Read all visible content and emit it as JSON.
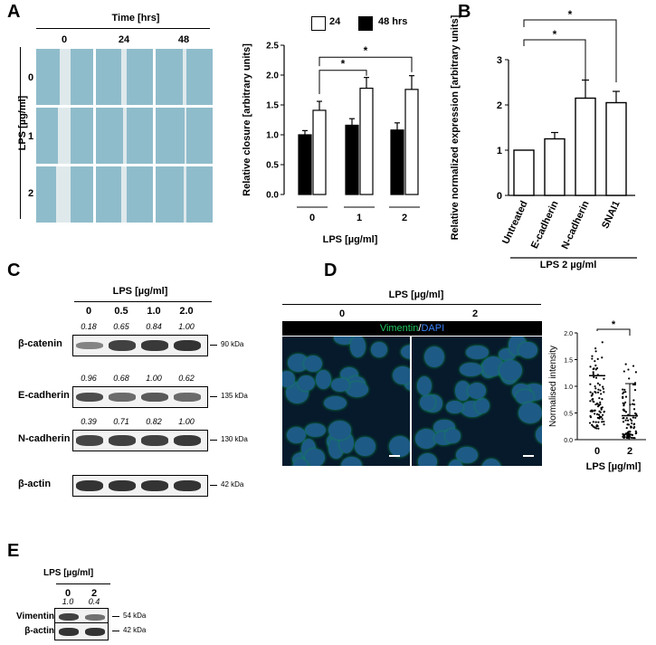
{
  "panelA": {
    "label": "A",
    "time_header": "Time [hrs]",
    "time_cols": [
      "0",
      "24",
      "48"
    ],
    "lps_label": "LPS [µg/ml]",
    "lps_rows": [
      "0",
      "1",
      "2"
    ],
    "legend": [
      "24",
      "48 hrs"
    ]
  },
  "panelB": {
    "label": "B",
    "group_label": "LPS 2 µg/ml"
  },
  "panelC": {
    "label": "C",
    "header": "LPS [µg/ml]",
    "cols": [
      "0",
      "0.5",
      "1.0",
      "2.0"
    ],
    "rows": [
      {
        "name": "β-catenin",
        "kda": "90 kDa",
        "quant": [
          "0.18",
          "0.65",
          "0.84",
          "1.00"
        ]
      },
      {
        "name": "E-cadherin",
        "kda": "135 kDa",
        "quant": [
          "0.96",
          "0.68",
          "1.00",
          "0.62"
        ]
      },
      {
        "name": "N-cadherin",
        "kda": "130 kDa",
        "quant": [
          "0.39",
          "0.71",
          "0.82",
          "1.00"
        ]
      },
      {
        "name": "β-actin",
        "kda": "42 kDa",
        "quant": []
      }
    ]
  },
  "panelD": {
    "label": "D",
    "header": "LPS [µg/ml]",
    "cols": [
      "0",
      "2"
    ],
    "stain_green": "Vimentin",
    "stain_sep": "/",
    "stain_blue": "DAPI",
    "colors": {
      "green": "#22c55e",
      "blue": "#3b82f6"
    }
  },
  "panelE": {
    "label": "E",
    "header": "LPS [µg/ml]",
    "cols": [
      "0",
      "2"
    ],
    "rows": [
      {
        "name": "Vimentin",
        "kda": "54 kDa",
        "quant": [
          "1.0",
          "0.4"
        ]
      },
      {
        "name": "β-actin",
        "kda": "42 kDa",
        "quant": []
      }
    ]
  },
  "chart_data": [
    {
      "type": "bar",
      "id": "A-closure",
      "categories": [
        "0",
        "1",
        "2"
      ],
      "series": [
        {
          "name": "48 hrs",
          "values": [
            1.0,
            1.16,
            1.08
          ],
          "errors": [
            0.07,
            0.11,
            0.12
          ],
          "color": "#000000"
        },
        {
          "name": "24",
          "values": [
            1.41,
            1.78,
            1.76
          ],
          "errors": [
            0.15,
            0.18,
            0.23
          ],
          "color": "#ffffff"
        }
      ],
      "xlabel": "LPS  [µg/ml]",
      "ylabel": "Relative closure [arbitrary units]",
      "ylim": [
        0,
        2.5
      ],
      "yticks": [
        "0.0",
        "0.5",
        "1.0",
        "1.5",
        "2.0",
        "2.5"
      ],
      "legend": "top",
      "significance": [
        "*",
        "*"
      ]
    },
    {
      "type": "bar",
      "id": "B-expression",
      "categories": [
        "Untreated",
        "E-cadherin",
        "N-cadherin",
        "SNAI1"
      ],
      "values": [
        1.0,
        1.25,
        2.15,
        2.05
      ],
      "errors": [
        0.0,
        0.14,
        0.4,
        0.25
      ],
      "ylabel": "Relative normalized expression [arbitrary units]",
      "ylim": [
        0,
        3
      ],
      "yticks": [
        "0",
        "1",
        "2",
        "3"
      ],
      "significance": [
        "*",
        "*"
      ]
    },
    {
      "type": "scatter",
      "id": "D-intensity",
      "categories": [
        "0",
        "2"
      ],
      "means": [
        1.2,
        0.45
      ],
      "sds": [
        0.0,
        0.6
      ],
      "ylabel": "Normalised intensity",
      "xlabel": "LPS [µg/ml]",
      "ylim": [
        0,
        2.0
      ],
      "yticks": [
        "0.0",
        "0.5",
        "1.0",
        "1.5",
        "2.0"
      ],
      "significance": [
        "*"
      ]
    }
  ]
}
